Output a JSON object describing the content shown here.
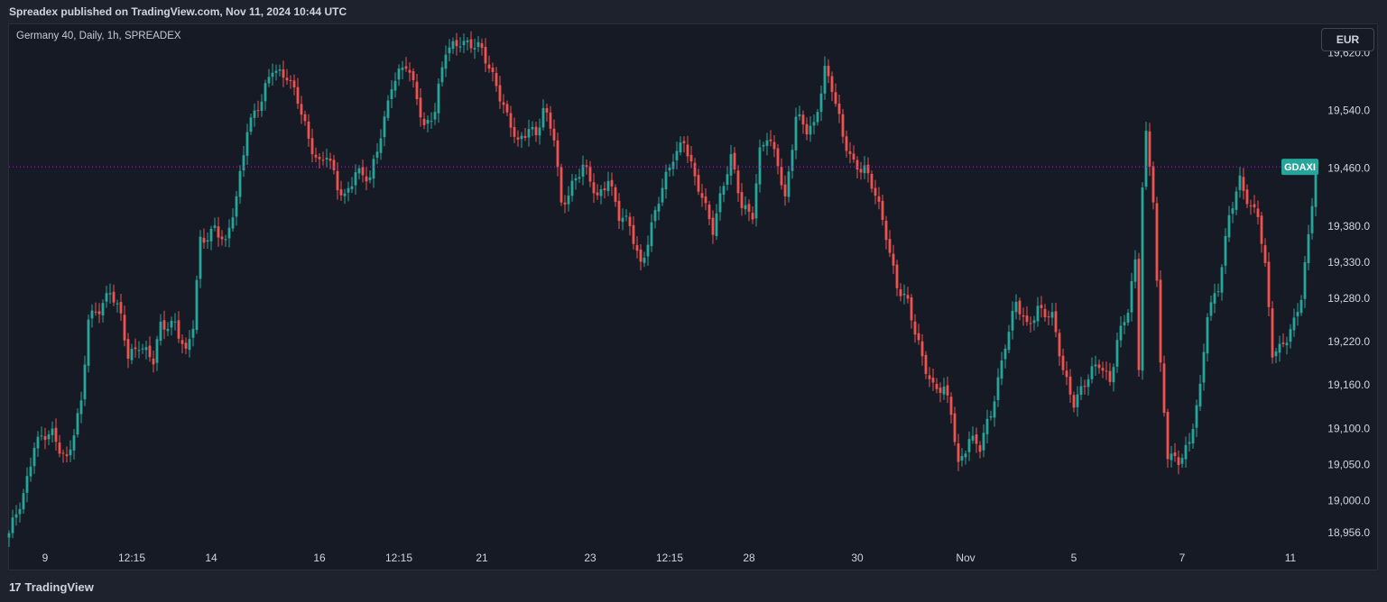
{
  "header": {
    "published": "Spreadex published on TradingView.com, Nov 11, 2024 10:44 UTC"
  },
  "legend": {
    "symbol": "Germany 40, Daily, 1h, SPREADEX"
  },
  "toolbar": {
    "currency": "EUR"
  },
  "footer": {
    "brand": "TradingView",
    "logo_glyph": "17"
  },
  "colors": {
    "up": "#26a69a",
    "down": "#ef5350",
    "price_line": "#9c27b0",
    "background": "#161a25",
    "axis_text": "#d1d4dc"
  },
  "chart_data": {
    "type": "candlestick",
    "title": "Germany 40, Daily, 1h, SPREADEX",
    "y_ticks": [
      {
        "value": 19620,
        "label": "19,620.0"
      },
      {
        "value": 19540,
        "label": "19,540.0"
      },
      {
        "value": 19460,
        "label": "19,460.0"
      },
      {
        "value": 19380,
        "label": "19,380.0"
      },
      {
        "value": 19330,
        "label": "19,330.0"
      },
      {
        "value": 19280,
        "label": "19,280.0"
      },
      {
        "value": 19220,
        "label": "19,220.0"
      },
      {
        "value": 19160,
        "label": "19,160.0"
      },
      {
        "value": 19100,
        "label": "19,100.0"
      },
      {
        "value": 19050,
        "label": "19,050.0"
      },
      {
        "value": 19000,
        "label": "19,000.0"
      },
      {
        "value": 18956,
        "label": "18,956.0"
      }
    ],
    "x_ticks": [
      {
        "index": 10,
        "label": "9"
      },
      {
        "index": 34,
        "label": "12:15"
      },
      {
        "index": 56,
        "label": "14"
      },
      {
        "index": 86,
        "label": "16"
      },
      {
        "index": 108,
        "label": "12:15"
      },
      {
        "index": 131,
        "label": "21"
      },
      {
        "index": 161,
        "label": "23"
      },
      {
        "index": 183,
        "label": "12:15"
      },
      {
        "index": 205,
        "label": "28"
      },
      {
        "index": 235,
        "label": "30"
      },
      {
        "index": 265,
        "label": "Nov"
      },
      {
        "index": 295,
        "label": "5"
      },
      {
        "index": 325,
        "label": "7"
      },
      {
        "index": 355,
        "label": "11"
      }
    ],
    "last_price": 19462,
    "price_label": "GDAXI",
    "candle_count": 363,
    "ylim": [
      18932,
      19648
    ],
    "anchors": [
      [
        0,
        18950
      ],
      [
        4,
        19010
      ],
      [
        7,
        19080
      ],
      [
        12,
        19090
      ],
      [
        16,
        19060
      ],
      [
        20,
        19130
      ],
      [
        22,
        19250
      ],
      [
        28,
        19290
      ],
      [
        31,
        19250
      ],
      [
        33,
        19200
      ],
      [
        36,
        19220
      ],
      [
        40,
        19190
      ],
      [
        42,
        19240
      ],
      [
        46,
        19250
      ],
      [
        49,
        19200
      ],
      [
        51,
        19240
      ],
      [
        53,
        19360
      ],
      [
        57,
        19380
      ],
      [
        60,
        19350
      ],
      [
        63,
        19420
      ],
      [
        66,
        19520
      ],
      [
        70,
        19550
      ],
      [
        73,
        19600
      ],
      [
        77,
        19590
      ],
      [
        80,
        19550
      ],
      [
        83,
        19500
      ],
      [
        86,
        19470
      ],
      [
        88,
        19480
      ],
      [
        91,
        19430
      ],
      [
        93,
        19420
      ],
      [
        96,
        19460
      ],
      [
        100,
        19440
      ],
      [
        104,
        19530
      ],
      [
        106,
        19580
      ],
      [
        110,
        19600
      ],
      [
        113,
        19560
      ],
      [
        115,
        19520
      ],
      [
        118,
        19540
      ],
      [
        121,
        19620
      ],
      [
        125,
        19640
      ],
      [
        128,
        19630
      ],
      [
        131,
        19620
      ],
      [
        135,
        19580
      ],
      [
        138,
        19530
      ],
      [
        141,
        19490
      ],
      [
        144,
        19520
      ],
      [
        146,
        19510
      ],
      [
        148,
        19540
      ],
      [
        151,
        19500
      ],
      [
        153,
        19410
      ],
      [
        156,
        19440
      ],
      [
        159,
        19460
      ],
      [
        163,
        19420
      ],
      [
        166,
        19450
      ],
      [
        169,
        19390
      ],
      [
        172,
        19380
      ],
      [
        175,
        19330
      ],
      [
        177,
        19360
      ],
      [
        181,
        19430
      ],
      [
        184,
        19480
      ],
      [
        187,
        19500
      ],
      [
        190,
        19440
      ],
      [
        192,
        19420
      ],
      [
        195,
        19380
      ],
      [
        197,
        19420
      ],
      [
        200,
        19470
      ],
      [
        203,
        19410
      ],
      [
        206,
        19400
      ],
      [
        208,
        19480
      ],
      [
        210,
        19500
      ],
      [
        213,
        19470
      ],
      [
        215,
        19420
      ],
      [
        218,
        19530
      ],
      [
        221,
        19510
      ],
      [
        223,
        19520
      ],
      [
        226,
        19600
      ],
      [
        228,
        19570
      ],
      [
        231,
        19500
      ],
      [
        234,
        19470
      ],
      [
        237,
        19460
      ],
      [
        240,
        19420
      ],
      [
        243,
        19370
      ],
      [
        246,
        19300
      ],
      [
        249,
        19270
      ],
      [
        251,
        19230
      ],
      [
        253,
        19200
      ],
      [
        256,
        19160
      ],
      [
        259,
        19150
      ],
      [
        261,
        19120
      ],
      [
        263,
        19050
      ],
      [
        266,
        19090
      ],
      [
        269,
        19070
      ],
      [
        272,
        19120
      ],
      [
        276,
        19220
      ],
      [
        279,
        19270
      ],
      [
        282,
        19240
      ],
      [
        285,
        19270
      ],
      [
        289,
        19250
      ],
      [
        292,
        19180
      ],
      [
        295,
        19140
      ],
      [
        298,
        19160
      ],
      [
        302,
        19190
      ],
      [
        305,
        19170
      ],
      [
        307,
        19220
      ],
      [
        310,
        19260
      ],
      [
        312,
        19330
      ],
      [
        313,
        19190
      ],
      [
        314,
        19440
      ],
      [
        315,
        19510
      ],
      [
        317,
        19420
      ],
      [
        319,
        19180
      ],
      [
        321,
        19060
      ],
      [
        324,
        19060
      ],
      [
        327,
        19080
      ],
      [
        330,
        19150
      ],
      [
        332,
        19260
      ],
      [
        335,
        19300
      ],
      [
        338,
        19390
      ],
      [
        341,
        19440
      ],
      [
        344,
        19410
      ],
      [
        346,
        19400
      ],
      [
        348,
        19320
      ],
      [
        350,
        19200
      ],
      [
        352,
        19210
      ],
      [
        354,
        19230
      ],
      [
        356,
        19250
      ],
      [
        358,
        19280
      ],
      [
        360,
        19360
      ],
      [
        362,
        19462
      ]
    ]
  }
}
